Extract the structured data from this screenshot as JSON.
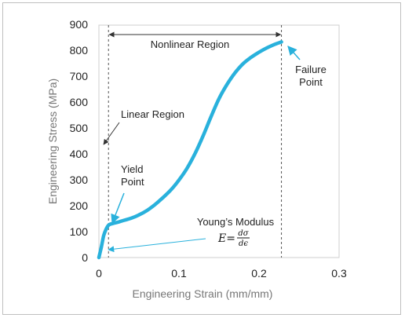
{
  "chart_data": {
    "type": "line",
    "xlabel": "Engineering Strain (mm/mm)",
    "ylabel": "Engineering Stress (MPa)",
    "xlim": [
      0,
      0.3
    ],
    "ylim": [
      0,
      900
    ],
    "x_ticks": [
      "0",
      "0.1",
      "0.2",
      "0.3"
    ],
    "y_ticks": [
      "0",
      "100",
      "200",
      "300",
      "400",
      "500",
      "600",
      "700",
      "800",
      "900"
    ],
    "grid": false,
    "line_color": "#29b1dc",
    "series": [
      {
        "x": [
          0,
          0.003,
          0.006,
          0.009,
          0.012,
          0.015,
          0.02,
          0.025,
          0.03,
          0.04,
          0.05,
          0.06,
          0.07,
          0.08,
          0.09,
          0.1,
          0.11,
          0.12,
          0.13,
          0.14,
          0.15,
          0.16,
          0.17,
          0.18,
          0.19,
          0.2,
          0.21,
          0.22,
          0.228
        ],
        "y": [
          0,
          40,
          85,
          110,
          125,
          130,
          134,
          138,
          143,
          152,
          165,
          182,
          205,
          232,
          262,
          300,
          345,
          402,
          470,
          545,
          615,
          670,
          715,
          750,
          775,
          795,
          812,
          826,
          835
        ]
      }
    ],
    "annotations": {
      "nonlinear_region": "Nonlinear Region",
      "failure_point_line1": "Failure",
      "failure_point_line2": "Point",
      "linear_region": "Linear Region",
      "yield_point_line1": "Yield",
      "yield_point_line2": "Point",
      "youngs_modulus": "Young’s Modulus",
      "formula_lhs": "E=",
      "formula_num": "dσ",
      "formula_den": "dϵ"
    },
    "markers": {
      "yield_strain": 0.012,
      "failure_strain": 0.228
    }
  }
}
